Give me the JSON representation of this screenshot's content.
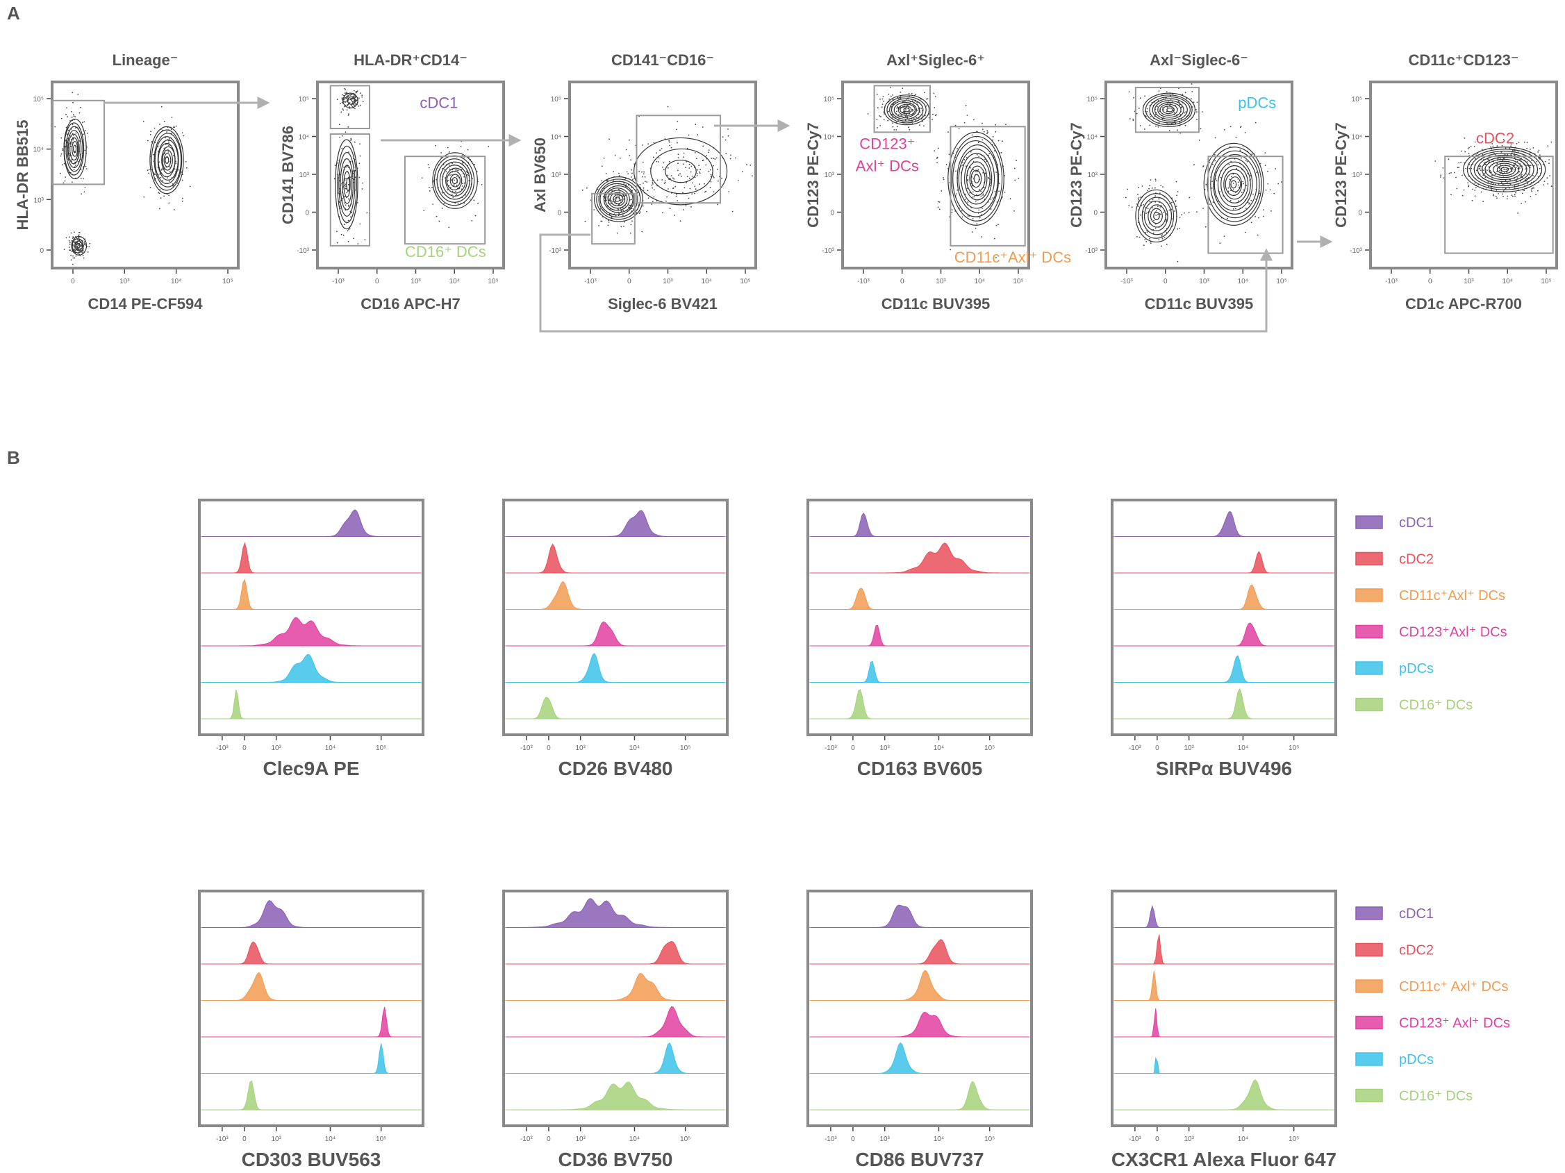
{
  "panels": {
    "a": "A",
    "b": "B"
  },
  "colors": {
    "cdc1": "#8a5fb4",
    "cdc2": "#e8505b",
    "cd11c_axl": "#f29b50",
    "cd123_axl": "#e23fa0",
    "pdc": "#3cc3ea",
    "cd16": "#a6d27a",
    "frame": "#8a8a8a",
    "arrow": "#b0b0b0"
  },
  "gating": [
    {
      "title": "Lineage⁻",
      "x_axis": "CD14 PE-CF594",
      "y_axis": "HLA-DR BB515",
      "x_ticks": [
        "0",
        "10³",
        "10⁴",
        "10⁵"
      ],
      "y_ticks": [
        "10⁵",
        "10⁴",
        "10³",
        "0"
      ],
      "populations": []
    },
    {
      "title": "HLA-DR⁺CD14⁻",
      "x_axis": "CD16 APC-H7",
      "y_axis": "CD141 BV786",
      "x_ticks": [
        "-10³",
        "0",
        "10³",
        "10⁴",
        "10⁵"
      ],
      "y_ticks": [
        "10⁵",
        "10⁴",
        "10³",
        "0",
        "-10³"
      ],
      "populations": [
        {
          "label": "cDC1",
          "color_key": "cdc1"
        },
        {
          "label": "CD16⁺ DCs",
          "color_key": "cd16"
        }
      ]
    },
    {
      "title": "CD141⁻CD16⁻",
      "x_axis": "Siglec-6 BV421",
      "y_axis": "Axl BV650",
      "x_ticks": [
        "-10³",
        "0",
        "10³",
        "10⁴",
        "10⁵"
      ],
      "y_ticks": [
        "10⁵",
        "10⁴",
        "10³",
        "0",
        "-10³"
      ],
      "populations": []
    },
    {
      "title": "Axl⁺Siglec-6⁺",
      "x_axis": "CD11c BUV395",
      "y_axis": "CD123 PE-Cy7",
      "x_ticks": [
        "-10³",
        "0",
        "10³",
        "10⁴",
        "10⁵"
      ],
      "y_ticks": [
        "10⁵",
        "10⁴",
        "10³",
        "0",
        "-10³"
      ],
      "populations": [
        {
          "label": "CD123⁺",
          "color_key": "cd123_axl"
        },
        {
          "label": "Axl⁺ DCs",
          "color_key": "cd123_axl"
        },
        {
          "label": "CD11c⁺Axl⁺ DCs",
          "color_key": "cd11c_axl"
        }
      ]
    },
    {
      "title": "Axl⁻Siglec-6⁻",
      "x_axis": "CD11c BUV395",
      "y_axis": "CD123 PE-Cy7",
      "x_ticks": [
        "-10³",
        "0",
        "10³",
        "10⁴",
        "10⁵"
      ],
      "y_ticks": [
        "10⁵",
        "10⁴",
        "10³",
        "0",
        "-10³"
      ],
      "populations": [
        {
          "label": "pDCs",
          "color_key": "pdc"
        }
      ]
    },
    {
      "title": "CD11c⁺CD123⁻",
      "x_axis": "CD1c APC-R700",
      "y_axis": "CD123 PE-Cy7",
      "x_ticks": [
        "-10³",
        "0",
        "10³",
        "10⁴",
        "10⁵"
      ],
      "y_ticks": [
        "10⁵",
        "10⁴",
        "10³",
        "0",
        "-10³"
      ],
      "populations": [
        {
          "label": "cDC2",
          "color_key": "cdc2"
        }
      ]
    }
  ],
  "histograms": {
    "populations": [
      "cDC1",
      "cDC2",
      "CD11c⁺Axl⁺ DCs",
      "CD123⁺Axl⁺ DCs",
      "pDCs",
      "CD16⁺ DCs"
    ],
    "legend_row1": [
      "cDC1",
      "cDC2",
      "CD11c⁺Axl⁺ DCs",
      "CD123⁺Axl⁺ DCs",
      "pDCs",
      "CD16⁺ DCs"
    ],
    "legend_row2": [
      "cDC1",
      "cDC2",
      "CD11c⁺ Axl⁺ DCs",
      "CD123⁺ Axl⁺ DCs",
      "pDCs",
      "CD16⁺ DCs"
    ],
    "pop_color_keys": [
      "cdc1",
      "cdc2",
      "cd11c_axl",
      "cd123_axl",
      "pdc",
      "cd16"
    ],
    "axis_ticks": [
      "-10³",
      "0",
      "10³",
      "10⁴",
      "10⁵"
    ],
    "markers": [
      {
        "label": "Clec9A PE",
        "peaks": [
          [
            3.4,
            0.35
          ],
          [
            0.0,
            0.14
          ],
          [
            0.0,
            0.14
          ],
          [
            1.8,
            0.8
          ],
          [
            1.9,
            0.5
          ],
          [
            -0.25,
            0.1
          ]
        ]
      },
      {
        "label": "CD26 BV480",
        "peaks": [
          [
            2.8,
            0.4
          ],
          [
            0.15,
            0.22
          ],
          [
            0.4,
            0.3
          ],
          [
            1.8,
            0.3
          ],
          [
            1.4,
            0.25
          ],
          [
            -0.05,
            0.2
          ]
        ]
      },
      {
        "label": "CD163 BV605",
        "peaks": [
          [
            0.35,
            0.16
          ],
          [
            2.8,
            0.75
          ],
          [
            0.25,
            0.18
          ],
          [
            0.75,
            0.12
          ],
          [
            0.6,
            0.12
          ],
          [
            0.2,
            0.18
          ]
        ]
      },
      {
        "label": "SIRPα BUV496",
        "peaks": [
          [
            2.25,
            0.22
          ],
          [
            3.2,
            0.14
          ],
          [
            3.0,
            0.2
          ],
          [
            2.95,
            0.22
          ],
          [
            2.5,
            0.18
          ],
          [
            2.6,
            0.18
          ]
        ]
      },
      {
        "label": "CD303 BUV563",
        "peaks": [
          [
            0.9,
            0.45
          ],
          [
            0.3,
            0.2
          ],
          [
            0.4,
            0.3
          ],
          [
            4.4,
            0.1
          ],
          [
            4.3,
            0.1
          ],
          [
            0.2,
            0.15
          ]
        ]
      },
      {
        "label": "CD36 BV750",
        "peaks": [
          [
            1.5,
            1.0
          ],
          [
            3.8,
            0.3
          ],
          [
            3.0,
            0.45
          ],
          [
            3.9,
            0.4
          ],
          [
            3.8,
            0.25
          ],
          [
            2.3,
            0.8
          ]
        ]
      },
      {
        "label": "CD86 BUV737",
        "peaks": [
          [
            1.55,
            0.35
          ],
          [
            2.7,
            0.3
          ],
          [
            2.3,
            0.35
          ],
          [
            2.4,
            0.45
          ],
          [
            1.5,
            0.3
          ],
          [
            3.8,
            0.25
          ]
        ]
      },
      {
        "label": "CX3CR1 Alexa Fluor 647",
        "peaks": [
          [
            -0.15,
            0.1
          ],
          [
            0.05,
            0.08
          ],
          [
            -0.1,
            0.08
          ],
          [
            -0.05,
            0.06
          ],
          [
            -0.02,
            0.04
          ],
          [
            3.05,
            0.35
          ]
        ]
      }
    ]
  }
}
